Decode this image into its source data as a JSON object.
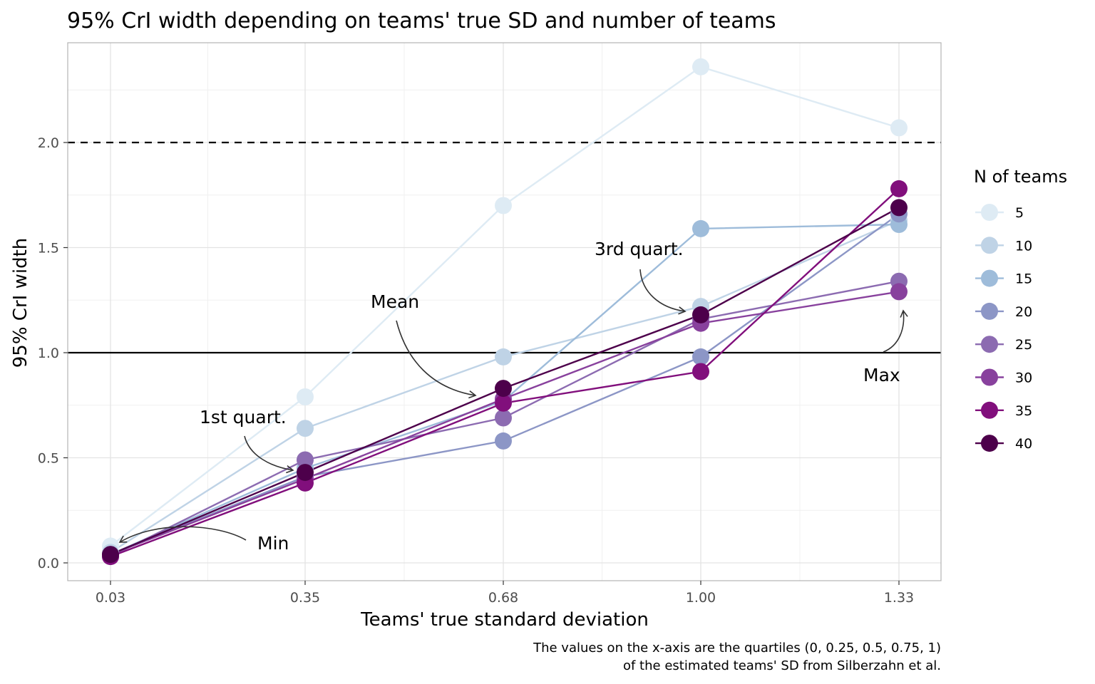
{
  "chart_data": {
    "type": "line",
    "title": "95% CrI width depending on teams' true SD and number of teams",
    "xlabel": "Teams' true standard deviation",
    "ylabel": "95% CrI width",
    "caption": [
      "The values on the x-axis are the quartiles (0, 0.25, 0.5, 0.75, 1)",
      "of the estimated teams' SD from Silberzahn et al."
    ],
    "categories": [
      "0.03",
      "0.35",
      "0.68",
      "1.00",
      "1.33"
    ],
    "ylim": [
      -0.08,
      2.48
    ],
    "yticks": [
      0.0,
      0.5,
      1.0,
      1.5,
      2.0
    ],
    "ytick_labels": [
      "0.0",
      "0.5",
      "1.0",
      "1.5",
      "2.0"
    ],
    "grid": true,
    "legend": {
      "title": "N of teams",
      "placement": "right"
    },
    "reference_lines": [
      {
        "y": 2.0,
        "style": "dashed"
      },
      {
        "y": 1.0,
        "style": "solid"
      }
    ],
    "series": [
      {
        "name": "5",
        "color": "#deebf4",
        "values": [
          0.08,
          0.79,
          1.7,
          2.36,
          2.07
        ]
      },
      {
        "name": "10",
        "color": "#bfd3e6",
        "values": [
          0.05,
          0.64,
          0.98,
          1.22,
          1.63
        ]
      },
      {
        "name": "15",
        "color": "#9ebcda",
        "values": [
          0.04,
          0.45,
          0.77,
          1.59,
          1.61
        ]
      },
      {
        "name": "20",
        "color": "#8c96c6",
        "values": [
          0.04,
          0.41,
          0.58,
          0.98,
          1.66
        ]
      },
      {
        "name": "25",
        "color": "#8c6bb1",
        "values": [
          0.03,
          0.49,
          0.69,
          1.16,
          1.34
        ]
      },
      {
        "name": "30",
        "color": "#88419d",
        "values": [
          0.04,
          0.4,
          0.78,
          1.14,
          1.29
        ]
      },
      {
        "name": "35",
        "color": "#810f7c",
        "values": [
          0.03,
          0.38,
          0.76,
          0.91,
          1.78
        ]
      },
      {
        "name": "40",
        "color": "#4d004b",
        "values": [
          0.04,
          0.43,
          0.83,
          1.18,
          1.69
        ]
      }
    ],
    "annotations": [
      {
        "text": "Min",
        "x": "0.03",
        "y": 0.04
      },
      {
        "text": "1st quart.",
        "x": "0.35",
        "y": 0.43
      },
      {
        "text": "Mean",
        "x": "0.68",
        "y": 0.8
      },
      {
        "text": "3rd quart.",
        "x": "1.00",
        "y": 1.2
      },
      {
        "text": "Max",
        "x": "1.33",
        "y": 1.2
      }
    ]
  }
}
